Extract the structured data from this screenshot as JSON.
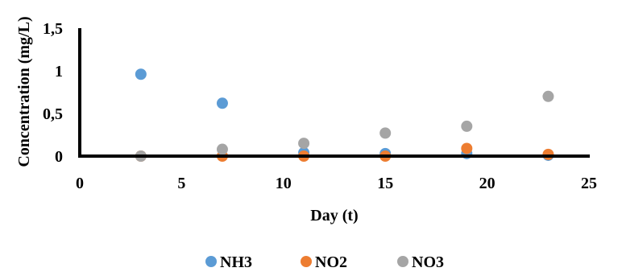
{
  "chart_data": {
    "type": "scatter",
    "title": "",
    "xlabel": "Day (t)",
    "ylabel": "Concentration (mg/L)",
    "xlim": [
      0,
      25
    ],
    "ylim": [
      0,
      1.5
    ],
    "x_ticks": [
      "0",
      "5",
      "10",
      "15",
      "20",
      "25"
    ],
    "y_ticks": [
      "0",
      "0,5",
      "1",
      "1,5"
    ],
    "grid": false,
    "legend_position": "bottom",
    "series": [
      {
        "name": "NH3",
        "color": "#5b9bd5",
        "x": [
          3,
          7,
          11,
          15,
          19,
          23
        ],
        "y": [
          0.96,
          0.62,
          0.04,
          0.03,
          0.03,
          0.01
        ]
      },
      {
        "name": "NO2",
        "color": "#ed7d31",
        "x": [
          3,
          7,
          11,
          15,
          19,
          23
        ],
        "y": [
          0.0,
          0.0,
          0.0,
          0.0,
          0.09,
          0.02
        ]
      },
      {
        "name": "NO3",
        "color": "#a5a5a5",
        "x": [
          3,
          7,
          11,
          15,
          19,
          23
        ],
        "y": [
          0.0,
          0.08,
          0.15,
          0.27,
          0.35,
          0.7
        ]
      }
    ]
  }
}
